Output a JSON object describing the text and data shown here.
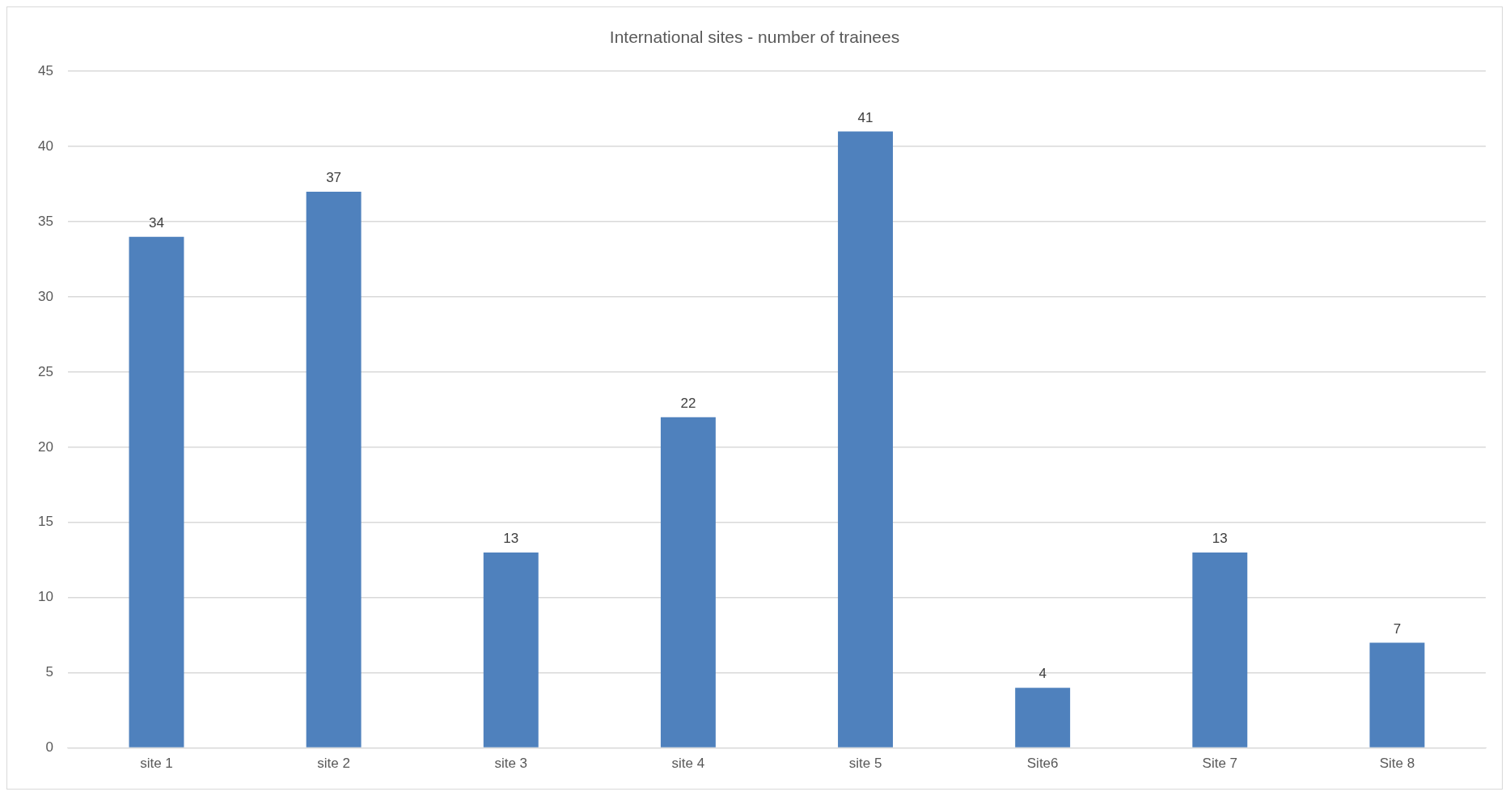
{
  "chart_data": {
    "type": "bar",
    "title": "International sites - number of trainees",
    "categories": [
      "site 1",
      "site 2",
      "site 3",
      "site 4",
      "site 5",
      "Site6",
      "Site 7",
      "Site 8"
    ],
    "values": [
      34,
      37,
      13,
      22,
      41,
      4,
      13,
      7
    ],
    "color": "#4f81bd",
    "ylim": [
      0,
      45
    ],
    "yticks": [
      0,
      5,
      10,
      15,
      20,
      25,
      30,
      35,
      40,
      45
    ],
    "grid": "y",
    "data_labels": true,
    "legend": false
  }
}
